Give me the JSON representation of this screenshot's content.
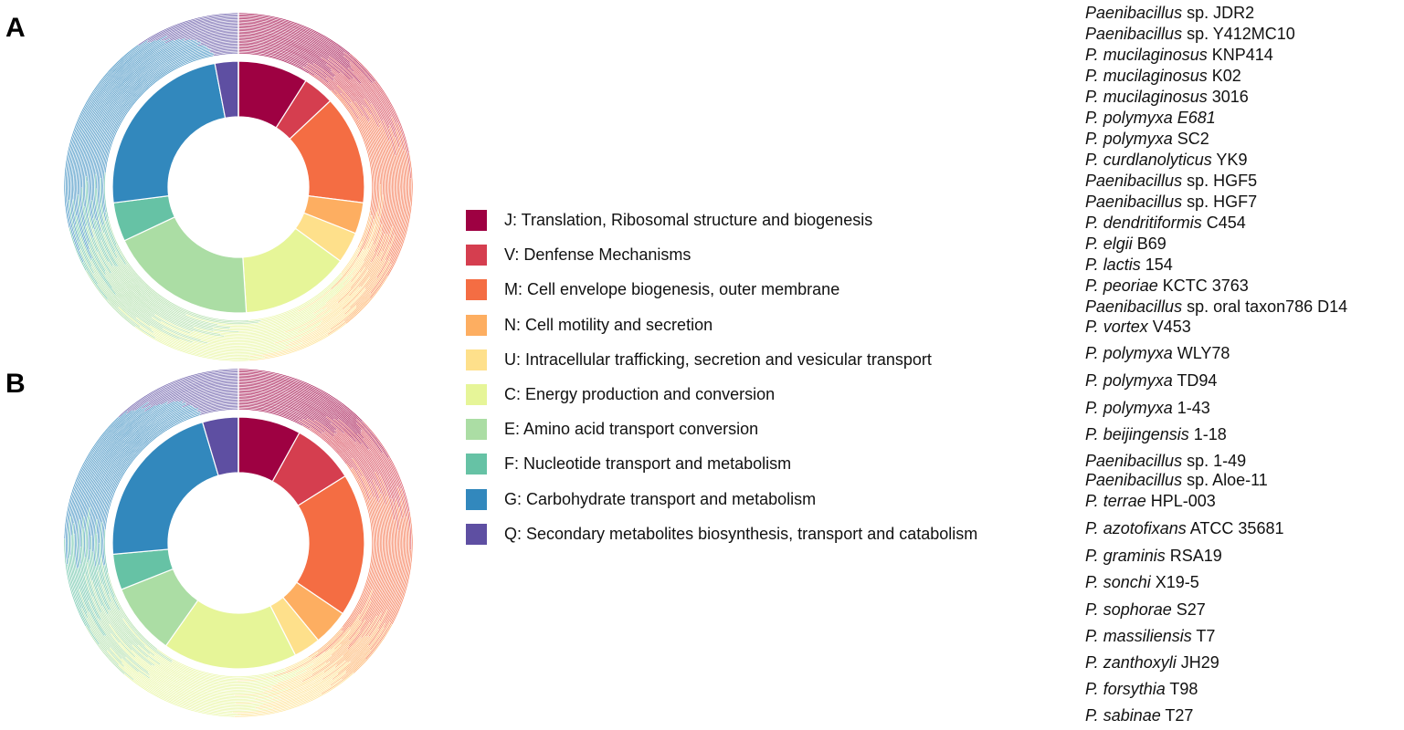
{
  "panels": [
    {
      "label": "A"
    },
    {
      "label": "B"
    }
  ],
  "legend": [
    {
      "code": "J",
      "label": "J: Translation, Ribosomal structure and biogenesis",
      "color": "#9e0142"
    },
    {
      "code": "V",
      "label": "V: Denfense Mechanisms",
      "color": "#d53e4f"
    },
    {
      "code": "M",
      "label": "M: Cell envelope biogenesis, outer membrane",
      "color": "#f46d43"
    },
    {
      "code": "N",
      "label": "N: Cell motility and secretion",
      "color": "#fdae61"
    },
    {
      "code": "U",
      "label": "U: Intracellular trafficking, secretion and vesicular transport",
      "color": "#fee08b"
    },
    {
      "code": "C",
      "label": "C: Energy production and conversion",
      "color": "#e6f598"
    },
    {
      "code": "E",
      "label": "E: Amino acid transport conversion",
      "color": "#abdda4"
    },
    {
      "code": "F",
      "label": "F: Nucleotide transport and metabolism",
      "color": "#66c2a5"
    },
    {
      "code": "G",
      "label": "G: Carbohydrate transport and metabolism",
      "color": "#3288bd"
    },
    {
      "code": "Q",
      "label": "Q: Secondary metabolites biosynthesis, transport and catabolism",
      "color": "#5e4fa2"
    }
  ],
  "species": [
    {
      "genus": "Paenibacillus",
      "rest": " sp. JDR2"
    },
    {
      "genus": "Paenibacillus",
      "rest": " sp. Y412MC10"
    },
    {
      "genus": "P. mucilaginosus",
      "rest": " KNP414"
    },
    {
      "genus": "P. mucilaginosus",
      "rest": " K02"
    },
    {
      "genus": "P. mucilaginosus",
      "rest": " 3016"
    },
    {
      "genus": "P. polymyxa  E681",
      "rest": ""
    },
    {
      "genus": "P. polymyxa",
      "rest": " SC2"
    },
    {
      "genus": "P. curdlanolyticus",
      "rest": " YK9"
    },
    {
      "genus": "Paenibacillus",
      "rest": " sp. HGF5"
    },
    {
      "genus": "Paenibacillus",
      "rest": " sp. HGF7"
    },
    {
      "genus": "P. dendritiformis",
      "rest": " C454"
    },
    {
      "genus": "P. elgii",
      "rest": " B69"
    },
    {
      "genus": "P. lactis",
      "rest": " 154"
    },
    {
      "genus": "P. peoriae",
      "rest": " KCTC 3763"
    },
    {
      "genus": "Paenibacillus",
      "rest": " sp. oral taxon786 D14"
    },
    {
      "genus": "P. vortex",
      "rest": " V453"
    },
    {
      "genus": "P. polymyxa",
      "rest": " WLY78"
    },
    {
      "genus": "P. polymyxa",
      "rest": " TD94"
    },
    {
      "genus": "P. polymyxa",
      "rest": " 1-43"
    },
    {
      "genus": "P. beijingensis",
      "rest": " 1-18"
    },
    {
      "genus": "Paenibacillus",
      "rest": " sp. 1-49"
    },
    {
      "genus": "Paenibacillus",
      "rest": " sp. Aloe-11"
    },
    {
      "genus": "P. terrae",
      "rest": " HPL-003"
    },
    {
      "genus": "P. azotofixans",
      "rest": " ATCC 35681"
    },
    {
      "genus": "P. graminis",
      "rest": " RSA19"
    },
    {
      "genus": "P. sonchi",
      "rest": " X19-5"
    },
    {
      "genus": "P. sophorae",
      "rest": " S27"
    },
    {
      "genus": "P. massiliensis",
      "rest": " T7"
    },
    {
      "genus": "P. zanthoxyli",
      "rest": " JH29"
    },
    {
      "genus": "P. forsythia",
      "rest": " T98"
    },
    {
      "genus": "P. sabinae",
      "rest": " T27"
    }
  ],
  "chart_data": [
    {
      "type": "donut",
      "panel": "A",
      "categories": [
        "J",
        "V",
        "M",
        "N",
        "U",
        "C",
        "E",
        "F",
        "G",
        "Q"
      ],
      "inner_ring_values": [
        9,
        4,
        14,
        4,
        4,
        14,
        19,
        5,
        24,
        3
      ],
      "outer_ring_values": [
        13,
        9,
        12,
        6,
        8,
        13,
        6,
        4,
        21,
        8
      ],
      "ring_count": 31
    },
    {
      "type": "donut",
      "panel": "B",
      "categories": [
        "J",
        "V",
        "M",
        "N",
        "U",
        "C",
        "E",
        "F",
        "G",
        "Q"
      ],
      "inner_ring_values": [
        7,
        7,
        16,
        4,
        3,
        15,
        8,
        4,
        19,
        4
      ],
      "outer_ring_values": [
        15,
        8,
        11,
        6,
        10,
        13,
        5,
        8,
        14,
        10
      ],
      "ring_count": 31
    }
  ]
}
